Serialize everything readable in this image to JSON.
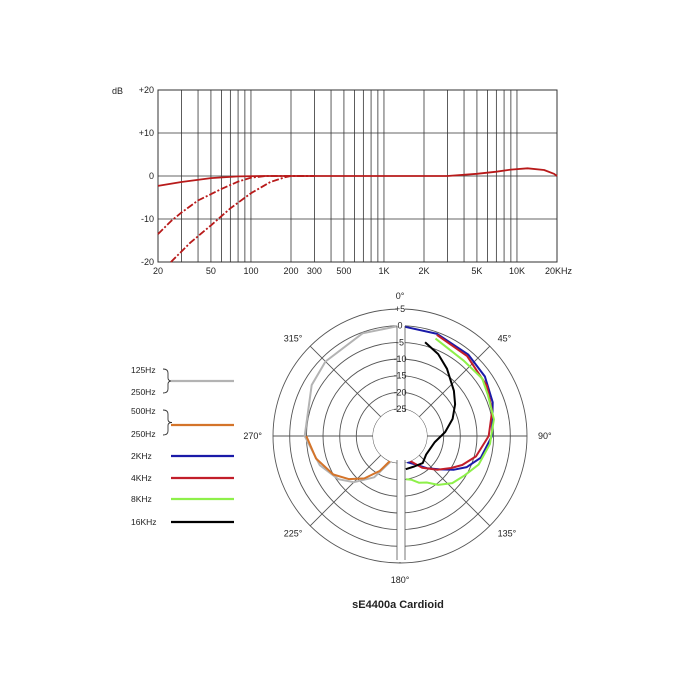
{
  "colors": {
    "response": "#b81a1a",
    "grid": "#333333",
    "polar_grid": "#555555"
  },
  "chart_data": [
    {
      "type": "line",
      "name": "frequency-response",
      "ylabel": "dB",
      "y_ticks": [
        {
          "value": 20,
          "label": "+20"
        },
        {
          "value": 10,
          "label": "+10"
        },
        {
          "value": 0,
          "label": "0"
        },
        {
          "value": -10,
          "label": "-10"
        },
        {
          "value": -20,
          "label": "-20"
        }
      ],
      "ylim": [
        -20,
        20
      ],
      "xlim": [
        20,
        20000
      ],
      "x_scale": "log",
      "x_ticks": [
        {
          "value": 20,
          "label": "20"
        },
        {
          "value": 50,
          "label": "50"
        },
        {
          "value": 100,
          "label": "100"
        },
        {
          "value": 200,
          "label": "200"
        },
        {
          "value": 300,
          "label": "300"
        },
        {
          "value": 500,
          "label": "500"
        },
        {
          "value": 1000,
          "label": "1K"
        },
        {
          "value": 2000,
          "label": "2K"
        },
        {
          "value": 5000,
          "label": "5K"
        },
        {
          "value": 10000,
          "label": "10K"
        },
        {
          "value": 20000,
          "label": "20KHz"
        }
      ],
      "series": [
        {
          "name": "flat",
          "style": "solid",
          "points": [
            [
              20,
              -2.3
            ],
            [
              30,
              -1.4
            ],
            [
              50,
              -0.5
            ],
            [
              80,
              -0.1
            ],
            [
              120,
              0
            ],
            [
              1000,
              0
            ],
            [
              3000,
              0
            ],
            [
              5000,
              0.5
            ],
            [
              7000,
              1
            ],
            [
              9000,
              1.5
            ],
            [
              12000,
              1.8
            ],
            [
              16000,
              1.4
            ],
            [
              19000,
              0.5
            ],
            [
              20000,
              0
            ]
          ]
        },
        {
          "name": "high-pass 1",
          "style": "dashed",
          "points": [
            [
              20,
              -13.5
            ],
            [
              25,
              -10.5
            ],
            [
              30,
              -8.5
            ],
            [
              40,
              -5.7
            ],
            [
              60,
              -3
            ],
            [
              80,
              -1.3
            ],
            [
              100,
              -0.4
            ],
            [
              130,
              0
            ],
            [
              300,
              0
            ]
          ]
        },
        {
          "name": "high-pass 2",
          "style": "dashed",
          "points": [
            [
              25,
              -20
            ],
            [
              35,
              -15.5
            ],
            [
              50,
              -11.5
            ],
            [
              70,
              -7.5
            ],
            [
              100,
              -4
            ],
            [
              140,
              -1.4
            ],
            [
              180,
              -0.3
            ],
            [
              200,
              0
            ],
            [
              300,
              0
            ]
          ]
        }
      ]
    },
    {
      "type": "polar",
      "name": "polar-pattern",
      "title": "sE4400a  Cardioid",
      "ring_labels": [
        "+5",
        "0",
        "-5",
        "-10",
        "-15",
        "-20",
        "-25"
      ],
      "angle_labels": [
        {
          "angle": 0,
          "label": "0°"
        },
        {
          "angle": 45,
          "label": "45°"
        },
        {
          "angle": 90,
          "label": "90°"
        },
        {
          "angle": 135,
          "label": "135°"
        },
        {
          "angle": 180,
          "label": "180°"
        },
        {
          "angle": 225,
          "label": "225°"
        },
        {
          "angle": 270,
          "label": "270°"
        },
        {
          "angle": 315,
          "label": "315°"
        }
      ],
      "legend": [
        {
          "labels": [
            "125Hz",
            "250Hz"
          ],
          "color": "#b3b3b3"
        },
        {
          "labels": [
            "500Hz",
            "250Hz"
          ],
          "color": "#d4742a"
        },
        {
          "labels": [
            "2KHz"
          ],
          "color": "#1a1aa8"
        },
        {
          "labels": [
            "4KHz"
          ],
          "color": "#c21e2a"
        },
        {
          "labels": [
            "8KHz"
          ],
          "color": "#8ef04a"
        },
        {
          "labels": [
            "16KHz"
          ],
          "color": "#000000"
        }
      ],
      "series": [
        {
          "name": "125Hz / 250Hz",
          "color": "#b3b3b3",
          "points": [
            [
              0,
              0
            ],
            [
              340,
              -0.3
            ],
            [
              315,
              -1.5
            ],
            [
              300,
              -2.5
            ],
            [
              270,
              -4.5
            ],
            [
              250,
              -7.5
            ],
            [
              235,
              -10.5
            ],
            [
              225,
              -13.5
            ],
            [
              212,
              -18.5
            ],
            [
              200,
              -25
            ]
          ]
        },
        {
          "name": "500Hz / 250Hz",
          "color": "#d4742a",
          "points": [
            [
              270,
              -5
            ],
            [
              255,
              -7
            ],
            [
              240,
              -10
            ],
            [
              230,
              -13
            ],
            [
              220,
              -16.5
            ],
            [
              210,
              -21
            ],
            [
              202,
              -25
            ]
          ]
        },
        {
          "name": "2KHz",
          "color": "#1a1aa8",
          "points": [
            [
              0,
              0
            ],
            [
              20,
              -0.5
            ],
            [
              40,
              -1.2
            ],
            [
              55,
              -2
            ],
            [
              70,
              -3.5
            ],
            [
              90,
              -5.5
            ],
            [
              105,
              -8
            ],
            [
              115,
              -11
            ],
            [
              122,
              -14
            ],
            [
              130,
              -17.5
            ],
            [
              140,
              -20.5
            ],
            [
              152,
              -23.5
            ],
            [
              165,
              -25
            ]
          ]
        },
        {
          "name": "4KHz",
          "color": "#c21e2a",
          "points": [
            [
              20,
              -0.8
            ],
            [
              40,
              -1.8
            ],
            [
              60,
              -3
            ],
            [
              75,
              -4.5
            ],
            [
              90,
              -6.5
            ],
            [
              105,
              -9.5
            ],
            [
              115,
              -12.5
            ],
            [
              122,
              -15
            ],
            [
              132,
              -18
            ],
            [
              145,
              -21.5
            ],
            [
              158,
              -25
            ]
          ]
        },
        {
          "name": "8KHz",
          "color": "#8ef04a",
          "points": [
            [
              20,
              -2
            ],
            [
              40,
              -3.5
            ],
            [
              55,
              -3
            ],
            [
              65,
              -4
            ],
            [
              80,
              -4.5
            ],
            [
              95,
              -6
            ],
            [
              110,
              -8
            ],
            [
              122,
              -10.5
            ],
            [
              132,
              -12
            ],
            [
              142,
              -14.5
            ],
            [
              150,
              -17
            ],
            [
              158,
              -18
            ],
            [
              165,
              -19.5
            ],
            [
              172,
              -20
            ]
          ]
        },
        {
          "name": "16KHz",
          "color": "#000000",
          "points": [
            [
              15,
              -4
            ],
            [
              25,
              -6
            ],
            [
              35,
              -8.5
            ],
            [
              50,
              -12
            ],
            [
              60,
              -14
            ],
            [
              72,
              -16.5
            ],
            [
              85,
              -19.5
            ],
            [
              100,
              -22.5
            ],
            [
              125,
              -23.5
            ],
            [
              140,
              -22.5
            ],
            [
              155,
              -23
            ],
            [
              170,
              -23
            ]
          ]
        }
      ]
    }
  ]
}
